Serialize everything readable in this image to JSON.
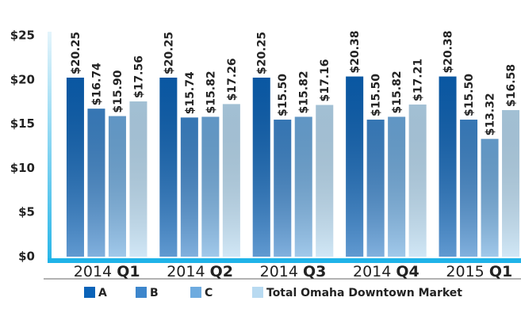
{
  "chart_data": {
    "type": "bar",
    "categories": [
      "2014 Q1",
      "2014 Q2",
      "2014 Q3",
      "2014 Q4",
      "2015 Q1"
    ],
    "series": [
      {
        "name": "A",
        "color": "#0b63b8",
        "values": [
          20.25,
          20.25,
          20.25,
          20.38,
          20.38
        ],
        "value_labels": [
          "$20.25",
          "$20.25",
          "$20.25",
          "$20.38",
          "$20.38"
        ]
      },
      {
        "name": "B",
        "color": "#3d86cc",
        "values": [
          16.74,
          15.74,
          15.5,
          15.5,
          15.5
        ],
        "value_labels": [
          "$16.74",
          "$15.74",
          "$15.50",
          "$15.50",
          "$15.50"
        ]
      },
      {
        "name": "C",
        "color": "#6eabdf",
        "values": [
          15.9,
          15.82,
          15.82,
          15.82,
          13.32
        ],
        "value_labels": [
          "$15.90",
          "$15.82",
          "$15.82",
          "$15.82",
          "$13.32"
        ]
      },
      {
        "name": "Total Omaha Downtown Market",
        "color": "#b8daf1",
        "values": [
          17.56,
          17.26,
          17.16,
          17.21,
          16.58
        ],
        "value_labels": [
          "$17.56",
          "$17.26",
          "$17.16",
          "$17.21",
          "$16.58"
        ]
      }
    ],
    "ylim": [
      0,
      25
    ],
    "yticks": [
      {
        "value": 0,
        "label": "$0"
      },
      {
        "value": 5,
        "label": "$5"
      },
      {
        "value": 10,
        "label": "$10"
      },
      {
        "value": 15,
        "label": "$15"
      },
      {
        "value": 20,
        "label": "$20"
      },
      {
        "value": 25,
        "label": "$25"
      }
    ],
    "legend": "bottom"
  }
}
